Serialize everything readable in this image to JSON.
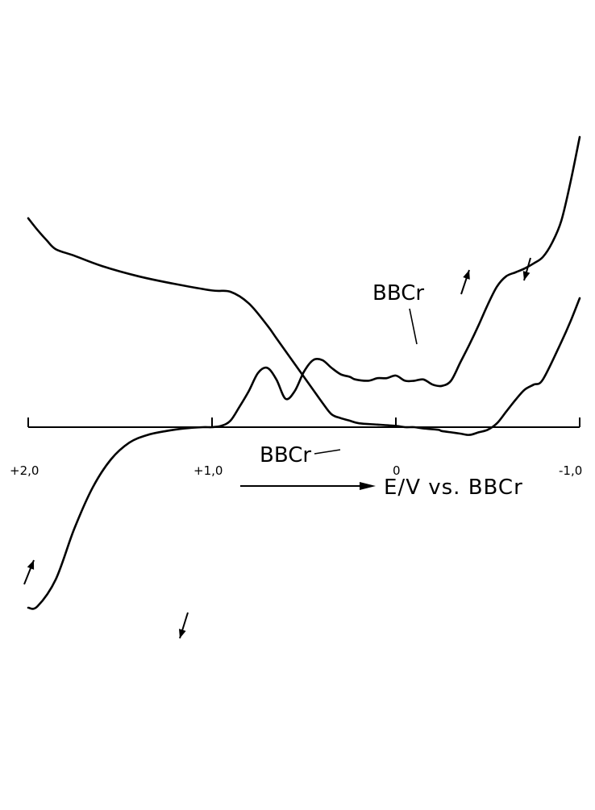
{
  "chart_data": {
    "type": "line",
    "title": "",
    "xlabel": "E/V vs. BBCr",
    "ylabel": "",
    "x_axis_reversed": true,
    "xlim": [
      2.0,
      -1.0
    ],
    "x_ticks": [
      2.0,
      1.0,
      0.0,
      -1.0
    ],
    "x_tick_labels": [
      "+2,0",
      "+1,0",
      "0",
      "-1,0"
    ],
    "y_axis_shown": false,
    "grid": false,
    "legend": "none",
    "colors": {
      "curve": "#000000",
      "axis": "#000000",
      "background": "#ffffff"
    },
    "series": [
      {
        "direction": "cathodic sweep (upper branch)",
        "x": [
          -1.0,
          -0.95,
          -0.9,
          -0.8,
          -0.75,
          -0.7,
          -0.65,
          -0.6,
          -0.55,
          -0.5,
          -0.45,
          -0.4,
          -0.35,
          -0.3,
          -0.25,
          -0.23,
          -0.15,
          -0.1,
          -0.05,
          0.0,
          0.1,
          0.2,
          0.25,
          0.3,
          0.35,
          0.4,
          0.45,
          0.5,
          0.55,
          0.6,
          0.65,
          0.7,
          0.8,
          0.9,
          1.0,
          1.2,
          1.4,
          1.6,
          1.75,
          1.85,
          1.9,
          1.95,
          2.0
        ],
        "y": [
          1.0,
          0.82,
          0.66,
          0.37,
          0.33,
          0.29,
          0.21,
          0.12,
          0.03,
          -0.02,
          -0.04,
          -0.06,
          -0.05,
          -0.04,
          -0.03,
          -0.02,
          -0.01,
          0.0,
          0.0,
          0.01,
          0.02,
          0.03,
          0.05,
          0.07,
          0.1,
          0.19,
          0.29,
          0.39,
          0.49,
          0.59,
          0.69,
          0.79,
          0.96,
          1.05,
          1.06,
          1.11,
          1.17,
          1.25,
          1.33,
          1.38,
          1.45,
          1.53,
          1.62
        ]
      },
      {
        "direction": "anodic sweep (lower branch)",
        "x": [
          2.0,
          1.95,
          1.85,
          1.75,
          1.65,
          1.55,
          1.45,
          1.35,
          1.25,
          1.15,
          1.05,
          1.0,
          0.95,
          0.9,
          0.85,
          0.8,
          0.75,
          0.7,
          0.65,
          0.6,
          0.55,
          0.5,
          0.45,
          0.4,
          0.35,
          0.3,
          0.25,
          0.22,
          0.15,
          0.1,
          0.05,
          0.0,
          -0.05,
          -0.1,
          -0.15,
          -0.2,
          -0.25,
          -0.3,
          -0.35,
          -0.4,
          -0.45,
          -0.5,
          -0.55,
          -0.6,
          -0.65,
          -0.7,
          -0.75,
          -0.8,
          -0.85,
          -0.9,
          -0.95,
          -1.0
        ],
        "y": [
          -1.4,
          -1.39,
          -1.18,
          -0.79,
          -0.47,
          -0.25,
          -0.12,
          -0.06,
          -0.03,
          -0.01,
          0.0,
          0.0,
          0.01,
          0.05,
          0.16,
          0.28,
          0.42,
          0.46,
          0.37,
          0.22,
          0.28,
          0.43,
          0.52,
          0.52,
          0.46,
          0.41,
          0.39,
          0.37,
          0.36,
          0.38,
          0.38,
          0.4,
          0.36,
          0.36,
          0.37,
          0.33,
          0.32,
          0.36,
          0.5,
          0.64,
          0.79,
          0.95,
          1.09,
          1.17,
          1.2,
          1.23,
          1.27,
          1.32,
          1.43,
          1.6,
          1.9,
          2.25
        ]
      }
    ],
    "annotations": [
      {
        "text": "BBCr",
        "x": -0.05,
        "y": 0.43
      },
      {
        "text": "BBCr",
        "x": 0.55,
        "y": -0.13
      }
    ]
  }
}
